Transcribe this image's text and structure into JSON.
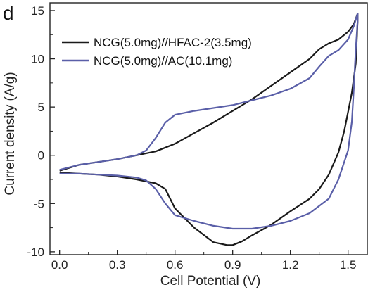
{
  "panel_label": "d",
  "colors": {
    "series_0": "#1a1a1a",
    "series_1": "#5a5fa8",
    "axis": "#222222"
  },
  "chart_data": {
    "type": "line",
    "xlabel": "Cell Potential (V)",
    "ylabel": "Current density (A/g)",
    "xlim": [
      -0.05,
      1.6
    ],
    "ylim": [
      -10.3,
      15.8
    ],
    "x_ticks": [
      0.0,
      0.3,
      0.6,
      0.9,
      1.2,
      1.5
    ],
    "x_tick_labels": [
      "0.0",
      "0.3",
      "0.6",
      "0.9",
      "1.2",
      "1.5"
    ],
    "y_ticks": [
      -10,
      -5,
      0,
      5,
      10,
      15
    ],
    "y_tick_labels": [
      "-10",
      "-5",
      "0",
      "5",
      "10",
      "15"
    ],
    "grid": false,
    "legend_position": "top-right",
    "series": [
      {
        "name": "NCG(5.0mg)//HFAC-2(3.5mg)",
        "x": [
          0.0,
          0.1,
          0.2,
          0.3,
          0.4,
          0.5,
          0.6,
          0.7,
          0.8,
          0.9,
          1.0,
          1.1,
          1.2,
          1.3,
          1.35,
          1.4,
          1.45,
          1.5,
          1.53,
          1.55,
          1.55,
          1.54,
          1.52,
          1.5,
          1.48,
          1.45,
          1.4,
          1.35,
          1.3,
          1.2,
          1.1,
          1.0,
          0.95,
          0.9,
          0.87,
          0.8,
          0.7,
          0.6,
          0.55,
          0.5,
          0.4,
          0.3,
          0.2,
          0.1,
          0.0
        ],
        "y": [
          -1.6,
          -1.0,
          -0.7,
          -0.4,
          0.0,
          0.4,
          1.2,
          2.3,
          3.4,
          4.6,
          5.8,
          7.2,
          8.6,
          10.0,
          11.0,
          11.6,
          12.0,
          12.8,
          13.6,
          14.7,
          14.0,
          9.5,
          6.5,
          4.5,
          2.5,
          0.3,
          -2.0,
          -3.5,
          -4.5,
          -5.8,
          -7.2,
          -8.3,
          -8.9,
          -9.3,
          -9.3,
          -9.0,
          -7.5,
          -5.5,
          -3.5,
          -2.9,
          -2.5,
          -2.2,
          -2.0,
          -1.9,
          -1.8
        ]
      },
      {
        "name": "NCG(5.0mg)//AC(10.1mg)",
        "x": [
          0.0,
          0.1,
          0.2,
          0.3,
          0.4,
          0.45,
          0.5,
          0.55,
          0.6,
          0.7,
          0.8,
          0.9,
          1.0,
          1.1,
          1.2,
          1.3,
          1.35,
          1.4,
          1.45,
          1.5,
          1.53,
          1.55,
          1.55,
          1.54,
          1.53,
          1.52,
          1.5,
          1.45,
          1.4,
          1.3,
          1.2,
          1.1,
          1.0,
          0.9,
          0.8,
          0.7,
          0.6,
          0.55,
          0.5,
          0.45,
          0.4,
          0.3,
          0.2,
          0.1,
          0.0
        ],
        "y": [
          -1.5,
          -1.0,
          -0.7,
          -0.4,
          0.0,
          0.5,
          1.8,
          3.4,
          4.2,
          4.6,
          4.9,
          5.2,
          5.7,
          6.2,
          6.9,
          8.0,
          9.2,
          10.3,
          10.9,
          12.0,
          13.4,
          14.7,
          14.0,
          11.0,
          7.0,
          3.5,
          0.5,
          -2.5,
          -4.5,
          -6.0,
          -6.8,
          -7.3,
          -7.6,
          -7.6,
          -7.3,
          -6.8,
          -6.2,
          -5.0,
          -3.5,
          -2.6,
          -2.3,
          -2.1,
          -2.0,
          -1.9,
          -1.9
        ]
      }
    ]
  }
}
